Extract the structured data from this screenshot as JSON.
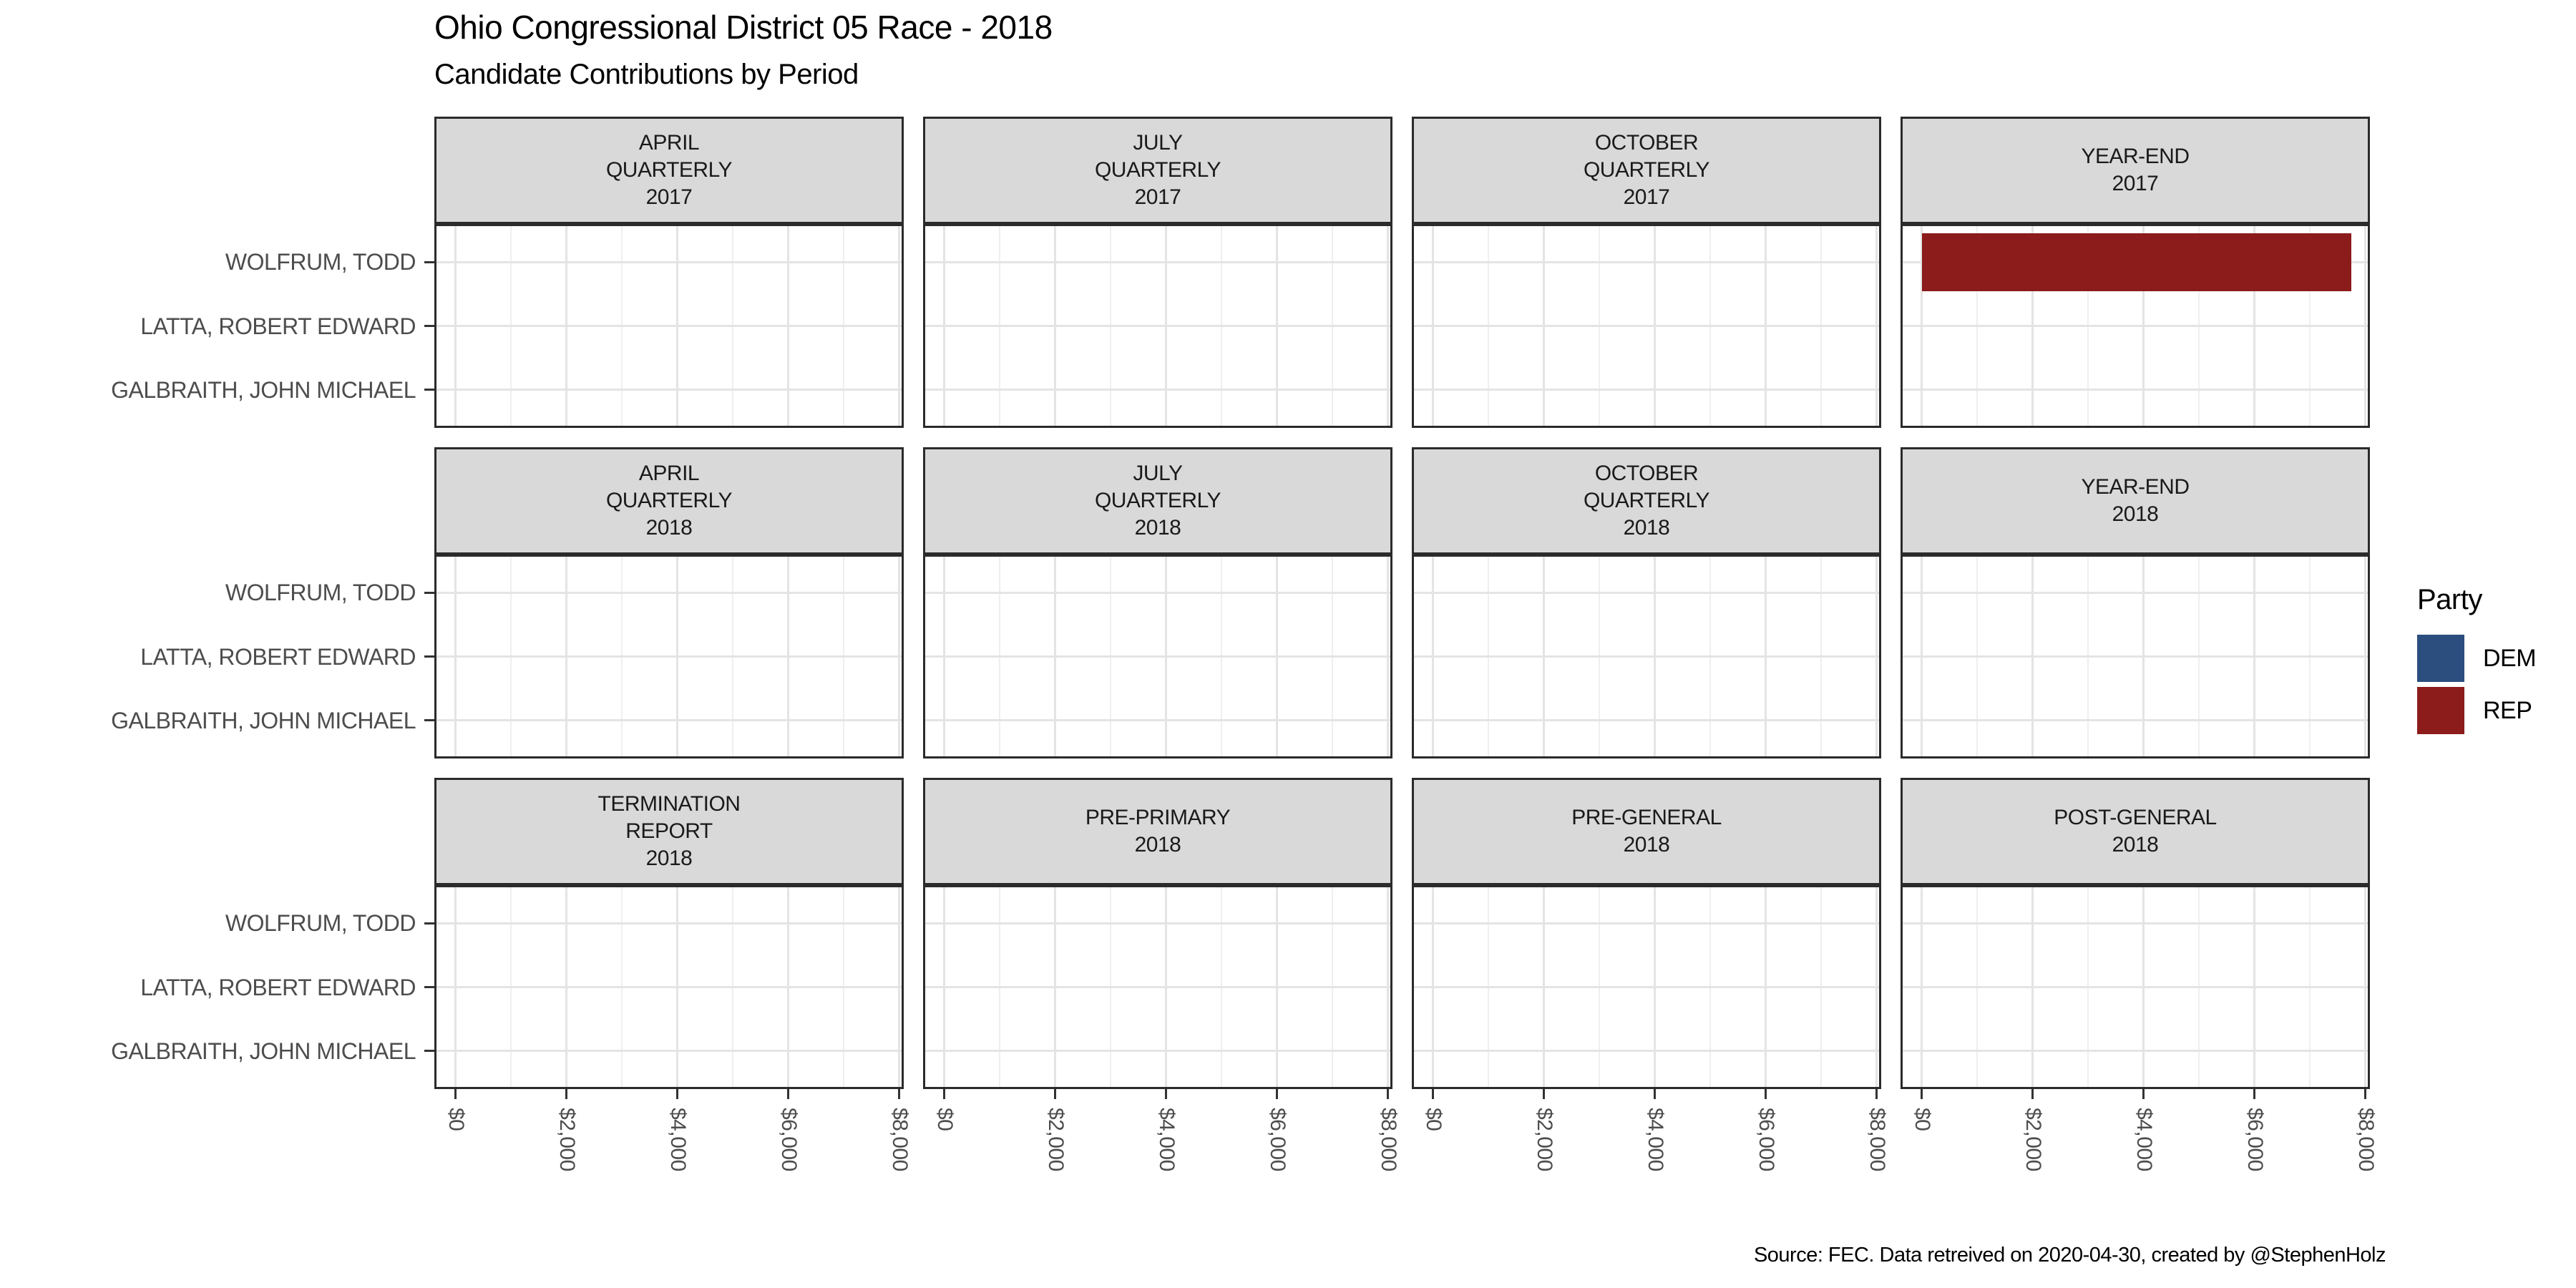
{
  "title": "Ohio Congressional District 05 Race - 2018",
  "subtitle": "Candidate Contributions by Period",
  "caption": "Source: FEC. Data retreived on 2020-04-30, created by @StephenHolz",
  "legend": {
    "title": "Party",
    "items": [
      {
        "label": "DEM",
        "color": "#2B4E7E"
      },
      {
        "label": "REP",
        "color": "#8C1B1B"
      }
    ]
  },
  "chart_data": {
    "type": "bar",
    "orientation": "horizontal",
    "facet_layout": {
      "rows": 3,
      "cols": 4
    },
    "periods": [
      [
        "APRIL",
        "QUARTERLY",
        "2017"
      ],
      [
        "JULY",
        "QUARTERLY",
        "2017"
      ],
      [
        "OCTOBER",
        "QUARTERLY",
        "2017"
      ],
      [
        "YEAR-END",
        "2017"
      ],
      [
        "APRIL",
        "QUARTERLY",
        "2018"
      ],
      [
        "JULY",
        "QUARTERLY",
        "2018"
      ],
      [
        "OCTOBER",
        "QUARTERLY",
        "2018"
      ],
      [
        "YEAR-END",
        "2018"
      ],
      [
        "TERMINATION",
        "REPORT",
        "2018"
      ],
      [
        "PRE-PRIMARY",
        "2018"
      ],
      [
        "PRE-GENERAL",
        "2018"
      ],
      [
        "POST-GENERAL",
        "2018"
      ]
    ],
    "candidates": [
      "WOLFRUM, TODD",
      "LATTA, ROBERT EDWARD",
      "GALBRAITH, JOHN MICHAEL"
    ],
    "x_axis": {
      "tick_labels": [
        "$0",
        "$2,000",
        "$4,000",
        "$6,000",
        "$8,000"
      ],
      "tick_values": [
        0,
        2000,
        4000,
        6000,
        8000
      ],
      "minor_values": [
        1000,
        3000,
        5000,
        7000
      ],
      "range": [
        0,
        8000
      ]
    },
    "grid": true,
    "legend_position": "right",
    "bars": [
      {
        "period": "YEAR-END 2017",
        "candidate": "WOLFRUM, TODD",
        "party": "REP",
        "value": 7750
      }
    ]
  }
}
